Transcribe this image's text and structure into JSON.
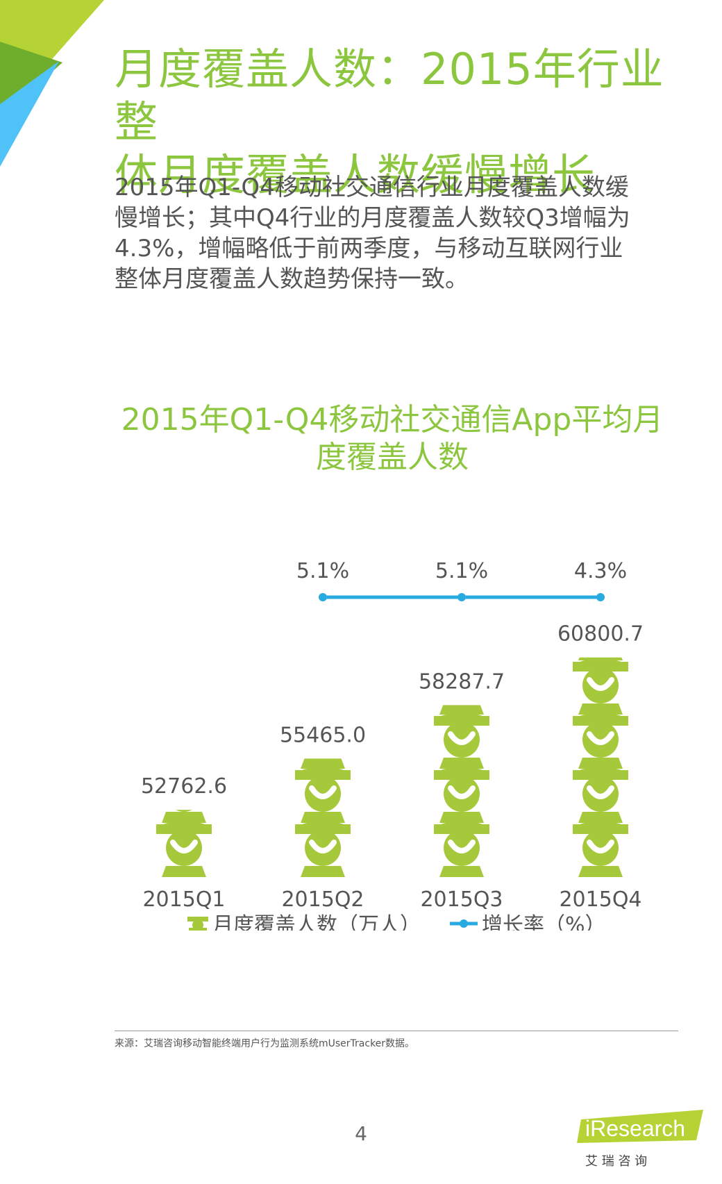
{
  "header": {
    "title_line1": "月度覆盖人数：2015年行业整",
    "title_line2": "体月度覆盖人数缓慢增长"
  },
  "summary": {
    "line1": "2015年Q1-Q4移动社交通信行业月度覆盖人数缓",
    "line2": "慢增长；其中Q4行业的月度覆盖人数较Q3增幅为",
    "line3": "4.3%，增幅略低于前两季度，与移动互联网行业",
    "line4": "整体月度覆盖人数趋势保持一致。"
  },
  "chart_data": {
    "type": "bar",
    "title_line1": "2015年Q1-Q4移动社交通信App平均月",
    "title_line2": "度覆盖人数",
    "categories": [
      "2015Q1",
      "2015Q2",
      "2015Q3",
      "2015Q4"
    ],
    "series": [
      {
        "name": "月度覆盖人数（万人）",
        "type": "pictogram-bar",
        "values": [
          52762.6,
          55465.0,
          58287.7,
          60800.7
        ],
        "labels": [
          "52762.6",
          "55465.0",
          "58287.7",
          "60800.7"
        ],
        "color": "#a6c93b"
      },
      {
        "name": "增长率（%）",
        "type": "line",
        "values": [
          null,
          5.1,
          5.1,
          4.3
        ],
        "labels": [
          "",
          "5.1%",
          "5.1%",
          "4.3%"
        ],
        "color": "#29abe2"
      }
    ],
    "legend_position": "bottom",
    "grid": false
  },
  "footer": {
    "source": "来源：艾瑞咨询移动智能终端用户行为监测系统mUserTracker数据。",
    "page_number": "4",
    "logo_text": "iResearch",
    "logo_cn": "艾 瑞 咨 询"
  },
  "colors": {
    "accent_green": "#8cc63f",
    "bar_green": "#a6c93b",
    "line_blue": "#29abe2",
    "corner_blue": "#4fc3f7",
    "corner_dark_green": "#6fae2d",
    "corner_light_green": "#b5d334"
  }
}
